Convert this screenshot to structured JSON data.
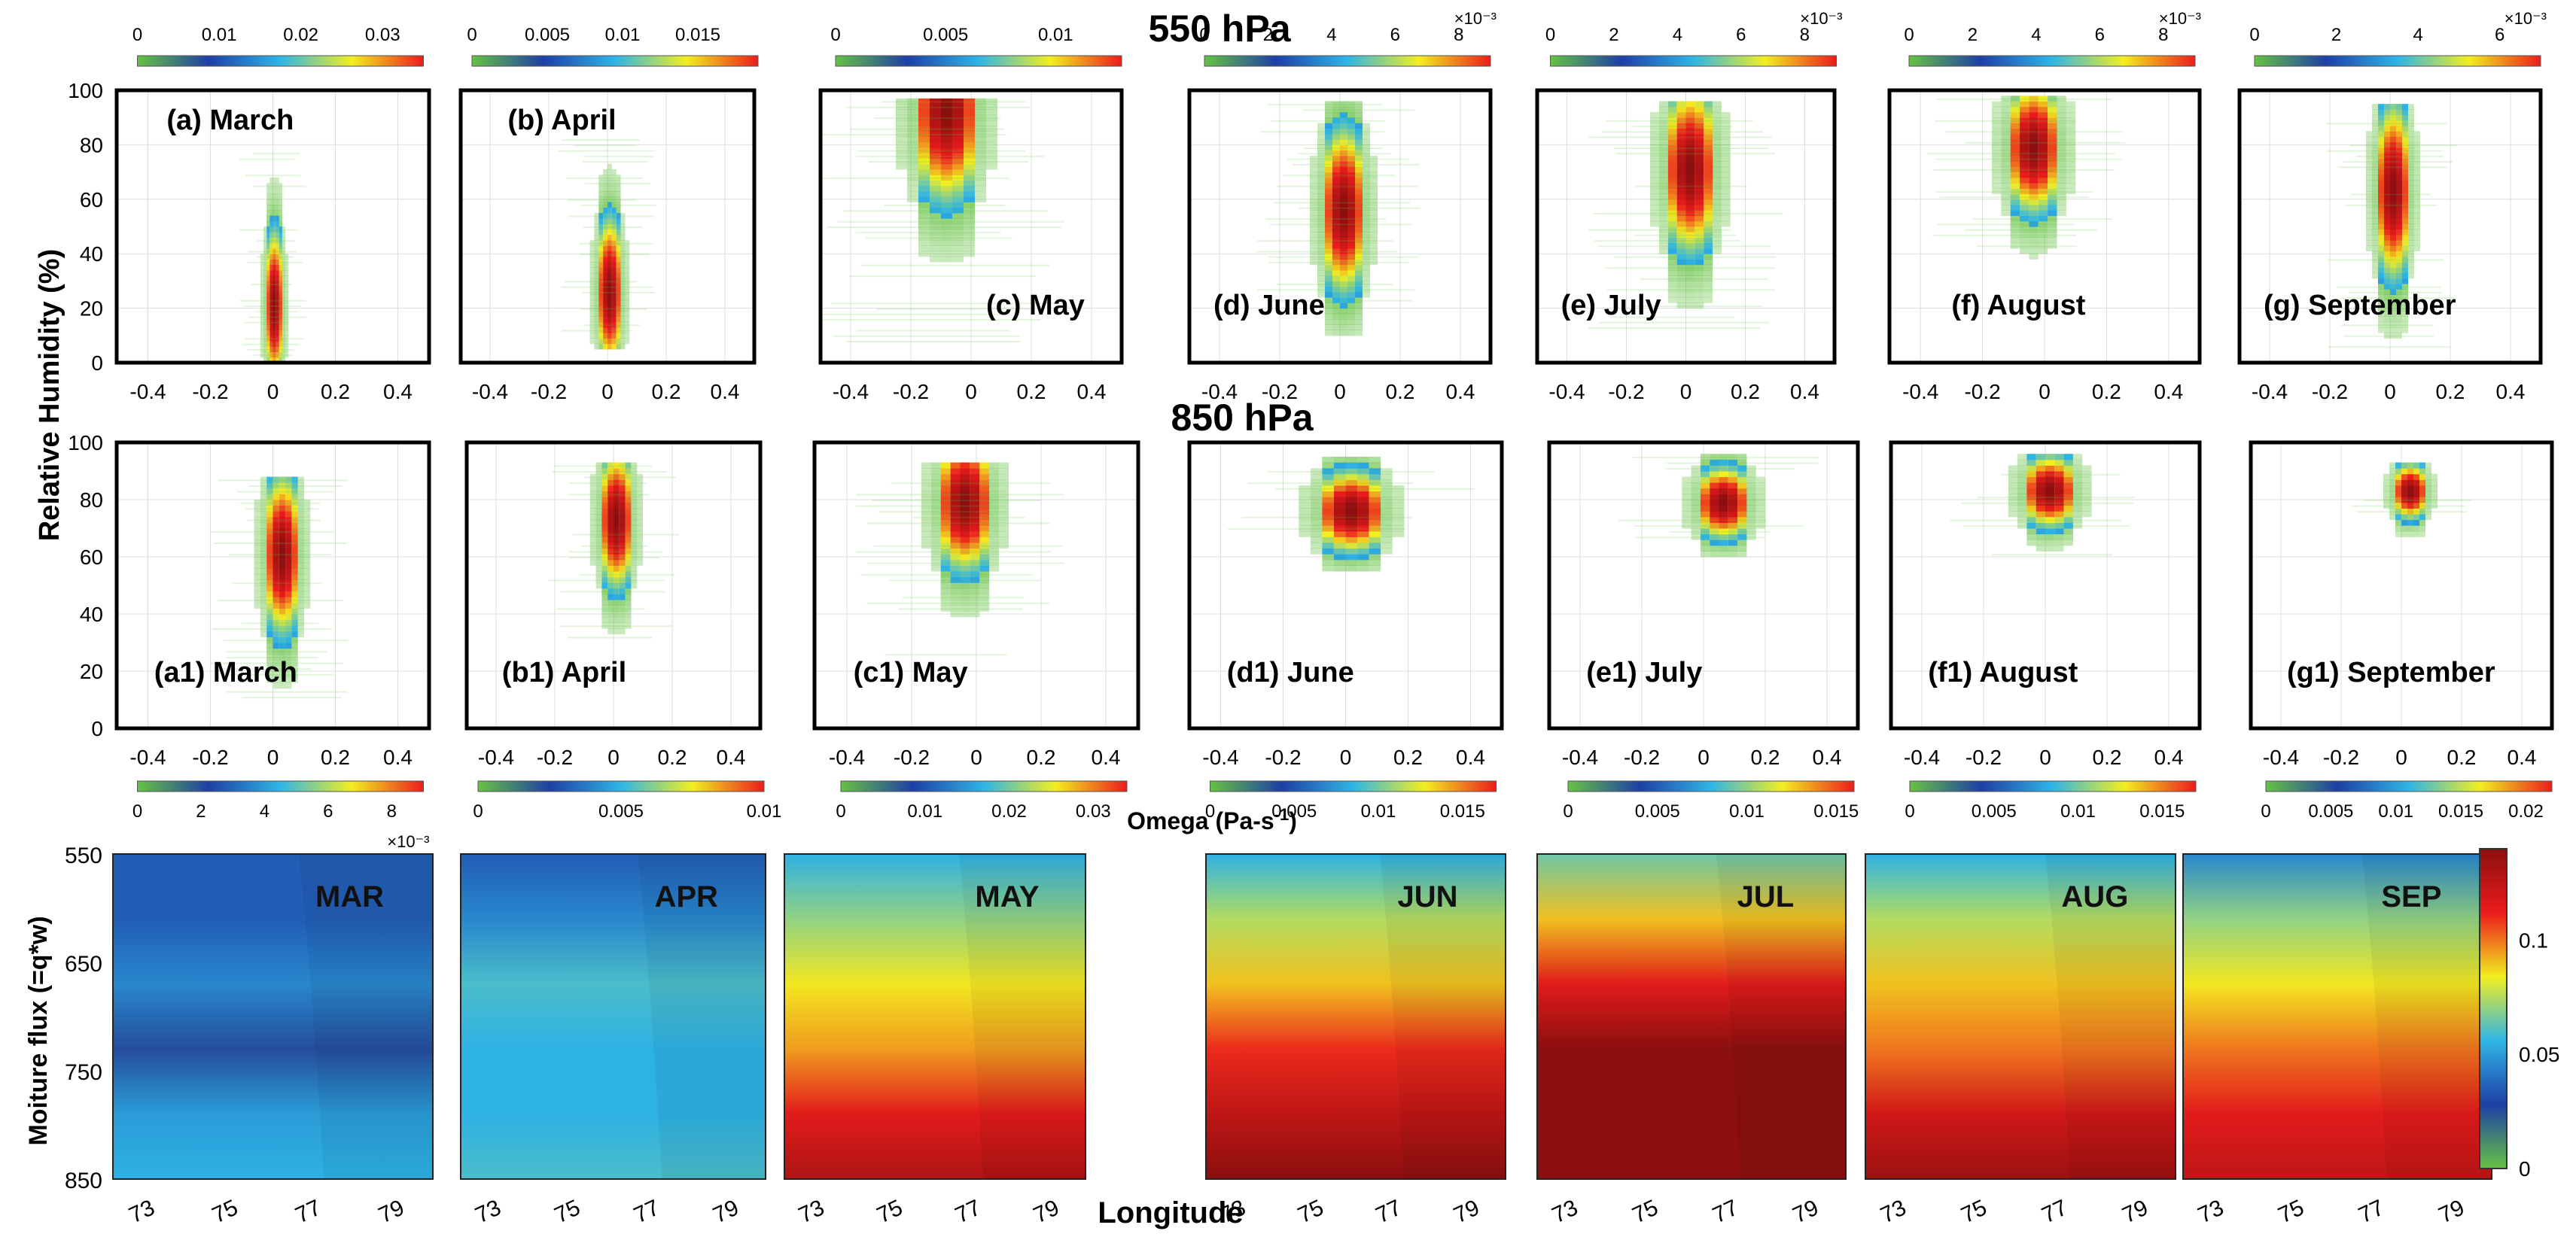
{
  "figure": {
    "title_550": "550 hPa",
    "title_850": "850 hPa",
    "ylabel_rh": "Relative Humidity (%)",
    "xlabel_omega": "Omega (Pa-s",
    "xlabel_omega_sup": "-1",
    "xlabel_omega_tail": ")",
    "ylabel_flux": "Moiture flux (=q*w)",
    "xlabel_lon": "Longitude"
  },
  "colors": {
    "colormap": [
      "#66c244",
      "#1e3fa6",
      "#2fb5e6",
      "#f2ee20",
      "#ec1c1c",
      "#8b0f0f"
    ],
    "frame": "#000000",
    "grid": "#dddddd"
  },
  "chart_data": [
    {
      "type": "heatmap",
      "id": "a",
      "row": "550 hPa",
      "label": "(a) March",
      "xlim": [
        -0.5,
        0.5
      ],
      "x_ticks": [
        "-0.4",
        "-0.2",
        "0",
        "0.2",
        "0.4"
      ],
      "ylim": [
        0,
        100
      ],
      "y_ticks": [
        "0",
        "20",
        "40",
        "60",
        "80",
        "100"
      ],
      "colorbar": {
        "ticks": [
          "0",
          "0.01",
          "0.02",
          "0.03"
        ],
        "range": [
          0,
          0.035
        ],
        "multiplier": ""
      },
      "peak": {
        "omega": 0.0,
        "rh": 20
      },
      "spread": {
        "omega": 0.04,
        "rh": [
          0,
          78
        ]
      }
    },
    {
      "type": "heatmap",
      "id": "b",
      "row": "550 hPa",
      "label": "(b) April",
      "xlim": [
        -0.5,
        0.5
      ],
      "x_ticks": [
        "-0.4",
        "-0.2",
        "0",
        "0.2",
        "0.4"
      ],
      "colorbar": {
        "ticks": [
          "0",
          "0.005",
          "0.01",
          "0.015"
        ],
        "range": [
          0,
          0.019
        ],
        "multiplier": ""
      },
      "peak": {
        "omega": 0.0,
        "rh": 25
      },
      "spread": {
        "omega": 0.06,
        "rh": [
          5,
          82
        ]
      }
    },
    {
      "type": "heatmap",
      "id": "c",
      "row": "550 hPa",
      "label": "(c) May",
      "xlim": [
        -0.5,
        0.5
      ],
      "x_ticks": [
        "-0.4",
        "-0.2",
        "0",
        "0.2",
        "0.4"
      ],
      "colorbar": {
        "ticks": [
          "0",
          "0.005",
          "0.01"
        ],
        "range": [
          0,
          0.013
        ],
        "multiplier": ""
      },
      "peak": {
        "omega": -0.1,
        "rh": 92
      },
      "spread": {
        "omega": 0.15,
        "rh": [
          3,
          97
        ]
      }
    },
    {
      "type": "heatmap",
      "id": "d",
      "row": "550 hPa",
      "label": "(d) June",
      "xlim": [
        -0.5,
        0.5
      ],
      "x_ticks": [
        "-0.4",
        "-0.2",
        "0",
        "0.2",
        "0.4"
      ],
      "colorbar": {
        "ticks": [
          "0",
          "2",
          "4",
          "6",
          "8"
        ],
        "range": [
          0,
          9
        ],
        "multiplier": "×10⁻³"
      },
      "peak": {
        "omega": 0.0,
        "rh": 55
      },
      "spread": {
        "omega": 0.1,
        "rh": [
          10,
          95
        ]
      }
    },
    {
      "type": "heatmap",
      "id": "e",
      "row": "550 hPa",
      "label": "(e) July",
      "xlim": [
        -0.5,
        0.5
      ],
      "x_ticks": [
        "-0.4",
        "-0.2",
        "0",
        "0.2",
        "0.4"
      ],
      "colorbar": {
        "ticks": [
          "0",
          "2",
          "4",
          "6",
          "8"
        ],
        "range": [
          0,
          9
        ],
        "multiplier": "×10⁻³"
      },
      "peak": {
        "omega": 0.0,
        "rh": 70
      },
      "spread": {
        "omega": 0.12,
        "rh": [
          10,
          95
        ]
      }
    },
    {
      "type": "heatmap",
      "id": "f",
      "row": "550 hPa",
      "label": "(f) August",
      "xlim": [
        -0.5,
        0.5
      ],
      "x_ticks": [
        "-0.4",
        "-0.2",
        "0",
        "0.2",
        "0.4"
      ],
      "colorbar": {
        "ticks": [
          "0",
          "2",
          "4",
          "6",
          "8"
        ],
        "range": [
          0,
          9
        ],
        "multiplier": "×10⁻³"
      },
      "peak": {
        "omega": -0.05,
        "rh": 78
      },
      "spread": {
        "omega": 0.12,
        "rh": [
          30,
          97
        ]
      }
    },
    {
      "type": "heatmap",
      "id": "g",
      "row": "550 hPa",
      "label": "(g) September",
      "xlim": [
        -0.5,
        0.5
      ],
      "x_ticks": [
        "-0.4",
        "-0.2",
        "0",
        "0.2",
        "0.4"
      ],
      "colorbar": {
        "ticks": [
          "0",
          "2",
          "4",
          "6"
        ],
        "range": [
          0,
          7
        ],
        "multiplier": "×10⁻³"
      },
      "peak": {
        "omega": 0.0,
        "rh": 62
      },
      "spread": {
        "omega": 0.08,
        "rh": [
          5,
          95
        ]
      }
    },
    {
      "type": "heatmap",
      "id": "a1",
      "row": "850 hPa",
      "label": "(a1) March",
      "xlim": [
        -0.5,
        0.5
      ],
      "x_ticks": [
        "-0.4",
        "-0.2",
        "0",
        "0.2",
        "0.4"
      ],
      "ylim": [
        0,
        100
      ],
      "y_ticks": [
        "0",
        "20",
        "40",
        "60",
        "80",
        "100"
      ],
      "colorbar": {
        "ticks": [
          "0",
          "2",
          "4",
          "6",
          "8"
        ],
        "range": [
          0,
          9
        ],
        "multiplier": "×10⁻³"
      },
      "peak": {
        "omega": 0.02,
        "rh": 60
      },
      "spread": {
        "omega": 0.08,
        "rh": [
          10,
          88
        ]
      }
    },
    {
      "type": "heatmap",
      "id": "b1",
      "row": "850 hPa",
      "label": "(b1) April",
      "xlim": [
        -0.5,
        0.5
      ],
      "x_ticks": [
        "-0.4",
        "-0.2",
        "0",
        "0.2",
        "0.4"
      ],
      "colorbar": {
        "ticks": [
          "0",
          "0.005",
          "0.01"
        ],
        "range": [
          0,
          0.01
        ],
        "multiplier": ""
      },
      "peak": {
        "omega": 0.0,
        "rh": 72
      },
      "spread": {
        "omega": 0.08,
        "rh": [
          25,
          92
        ]
      }
    },
    {
      "type": "heatmap",
      "id": "c1",
      "row": "850 hPa",
      "label": "(c1) May",
      "xlim": [
        -0.5,
        0.5
      ],
      "x_ticks": [
        "-0.4",
        "-0.2",
        "0",
        "0.2",
        "0.4"
      ],
      "colorbar": {
        "ticks": [
          "0",
          "0.01",
          "0.02",
          "0.03"
        ],
        "range": [
          0,
          0.034
        ],
        "multiplier": ""
      },
      "peak": {
        "omega": -0.05,
        "rh": 78
      },
      "spread": {
        "omega": 0.12,
        "rh": [
          25,
          92
        ]
      }
    },
    {
      "type": "heatmap",
      "id": "d1",
      "row": "850 hPa",
      "label": "(d1) June",
      "xlim": [
        -0.5,
        0.5
      ],
      "x_ticks": [
        "-0.4",
        "-0.2",
        "0",
        "0.2",
        "0.4"
      ],
      "colorbar": {
        "ticks": [
          "0",
          "0.005",
          "0.01",
          "0.015"
        ],
        "range": [
          0,
          0.017
        ],
        "multiplier": ""
      },
      "peak": {
        "omega": 0.0,
        "rh": 75
      },
      "spread": {
        "omega": 0.15,
        "rh": [
          55,
          95
        ]
      }
    },
    {
      "type": "heatmap",
      "id": "e1",
      "row": "850 hPa",
      "label": "(e1) July",
      "xlim": [
        -0.5,
        0.5
      ],
      "x_ticks": [
        "-0.4",
        "-0.2",
        "0",
        "0.2",
        "0.4"
      ],
      "colorbar": {
        "ticks": [
          "0",
          "0.005",
          "0.01",
          "0.015"
        ],
        "range": [
          0,
          0.016
        ],
        "multiplier": ""
      },
      "peak": {
        "omega": 0.05,
        "rh": 78
      },
      "spread": {
        "omega": 0.12,
        "rh": [
          60,
          95
        ]
      }
    },
    {
      "type": "heatmap",
      "id": "f1",
      "row": "850 hPa",
      "label": "(f1) August",
      "xlim": [
        -0.5,
        0.5
      ],
      "x_ticks": [
        "-0.4",
        "-0.2",
        "0",
        "0.2",
        "0.4"
      ],
      "colorbar": {
        "ticks": [
          "0",
          "0.005",
          "0.01",
          "0.015"
        ],
        "range": [
          0,
          0.017
        ],
        "multiplier": ""
      },
      "peak": {
        "omega": 0.0,
        "rh": 82
      },
      "spread": {
        "omega": 0.12,
        "rh": [
          60,
          95
        ]
      }
    },
    {
      "type": "heatmap",
      "id": "g1",
      "row": "850 hPa",
      "label": "(g1) September",
      "xlim": [
        -0.5,
        0.5
      ],
      "x_ticks": [
        "-0.4",
        "-0.2",
        "0",
        "0.2",
        "0.4"
      ],
      "colorbar": {
        "ticks": [
          "0",
          "0.005",
          "0.01",
          "0.015",
          "0.02"
        ],
        "range": [
          0,
          0.022
        ],
        "multiplier": ""
      },
      "peak": {
        "omega": 0.02,
        "rh": 82
      },
      "spread": {
        "omega": 0.08,
        "rh": [
          65,
          92
        ]
      }
    },
    {
      "type": "heatmap",
      "id": "flux",
      "panels": [
        "MAR",
        "APR",
        "MAY",
        "JUN",
        "JUL",
        "AUG",
        "SEP"
      ],
      "x_ticks": [
        "73",
        "75",
        "77",
        "79"
      ],
      "y_ticks": [
        "550",
        "650",
        "750",
        "850"
      ],
      "colorbar": {
        "ticks": [
          "0",
          "0.05",
          "0.1"
        ],
        "range": [
          0,
          0.14
        ]
      },
      "levels": {
        "MAR": [
          0.035,
          0.035,
          0.045,
          0.025,
          0.05,
          0.055
        ],
        "APR": [
          0.035,
          0.045,
          0.06,
          0.055,
          0.055,
          0.06
        ],
        "MAY": [
          0.055,
          0.07,
          0.085,
          0.095,
          0.115,
          0.13
        ],
        "JUN": [
          0.055,
          0.075,
          0.09,
          0.11,
          0.125,
          0.14
        ],
        "JUL": [
          0.065,
          0.09,
          0.115,
          0.14,
          0.15,
          0.155
        ],
        "AUG": [
          0.055,
          0.075,
          0.09,
          0.1,
          0.12,
          0.135
        ],
        "SEP": [
          0.045,
          0.07,
          0.085,
          0.1,
          0.115,
          0.125
        ]
      }
    }
  ]
}
